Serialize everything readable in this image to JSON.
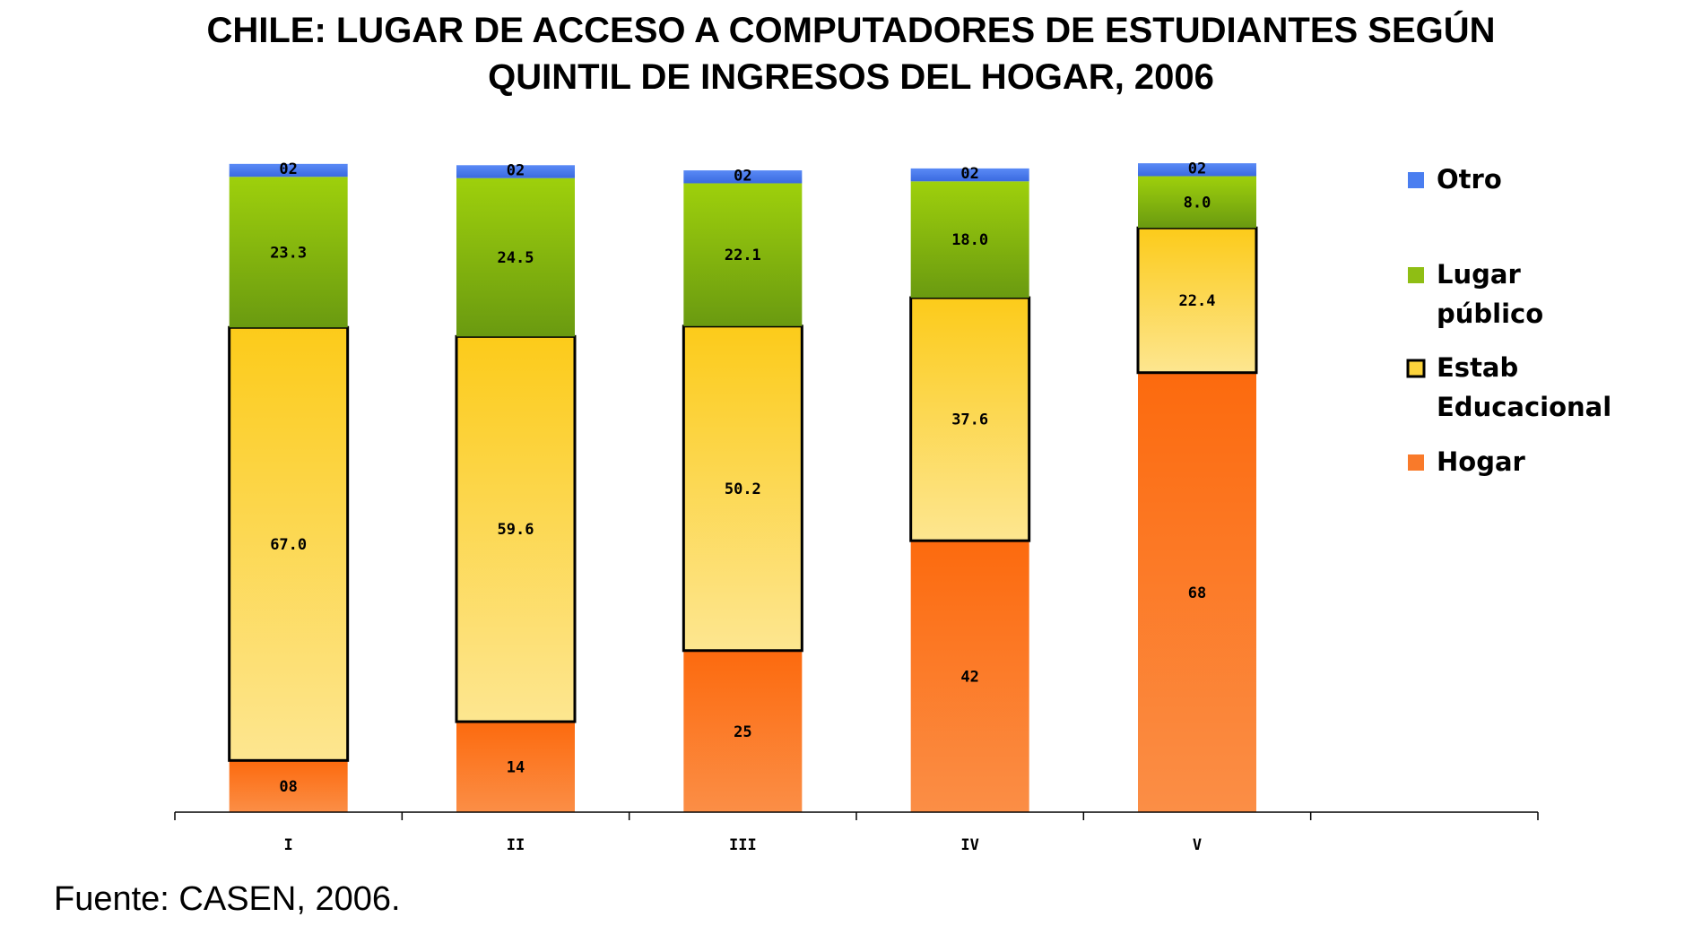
{
  "chart_data": {
    "type": "bar",
    "stacked": true,
    "title": "CHILE: LUGAR DE ACCESO A COMPUTADORES DE ESTUDIANTES SEGÚN QUINTIL DE INGRESOS DEL HOGAR, 2006",
    "title_lines": [
      "CHILE: LUGAR DE ACCESO A COMPUTADORES DE ESTUDIANTES SEGÚN",
      "QUINTIL DE INGRESOS DEL HOGAR, 2006"
    ],
    "categories": [
      "I",
      "II",
      "III",
      "IV",
      "V"
    ],
    "series": [
      {
        "name": "Hogar",
        "color": "#f97a2a",
        "values": [
          8,
          14,
          25,
          42,
          68
        ],
        "labels": [
          "08",
          "14",
          "25",
          "42",
          "68"
        ]
      },
      {
        "name": "Estab Educacional",
        "color": "#fcd43c",
        "values": [
          67.0,
          59.6,
          50.2,
          37.6,
          22.4
        ],
        "labels": [
          "67.0",
          "59.6",
          "50.2",
          "37.6",
          "22.4"
        ]
      },
      {
        "name": "Lugar público",
        "color": "#8fbe14",
        "values": [
          23.3,
          24.5,
          22.1,
          18.0,
          8.0
        ],
        "labels": [
          "23.3",
          "24.5",
          "22.1",
          "18.0",
          "8.0"
        ]
      },
      {
        "name": "Otro",
        "color": "#4a7ef0",
        "values": [
          2,
          2,
          2,
          2,
          2
        ],
        "labels": [
          "02",
          "02",
          "02",
          "02",
          "02"
        ]
      }
    ],
    "legend": {
      "placement": "right",
      "items": [
        {
          "lines": [
            "Otro"
          ],
          "color": "#4a7ef0"
        },
        {
          "lines": [
            "Lugar",
            "público"
          ],
          "color": "#8fbe14"
        },
        {
          "lines": [
            "Estab",
            "Educacional"
          ],
          "color": "#fcd43c"
        },
        {
          "lines": [
            "Hogar"
          ],
          "color": "#f97a2a"
        }
      ]
    },
    "ylim": [
      0,
      100
    ],
    "grid": false
  },
  "source": "Fuente: CASEN, 2006."
}
